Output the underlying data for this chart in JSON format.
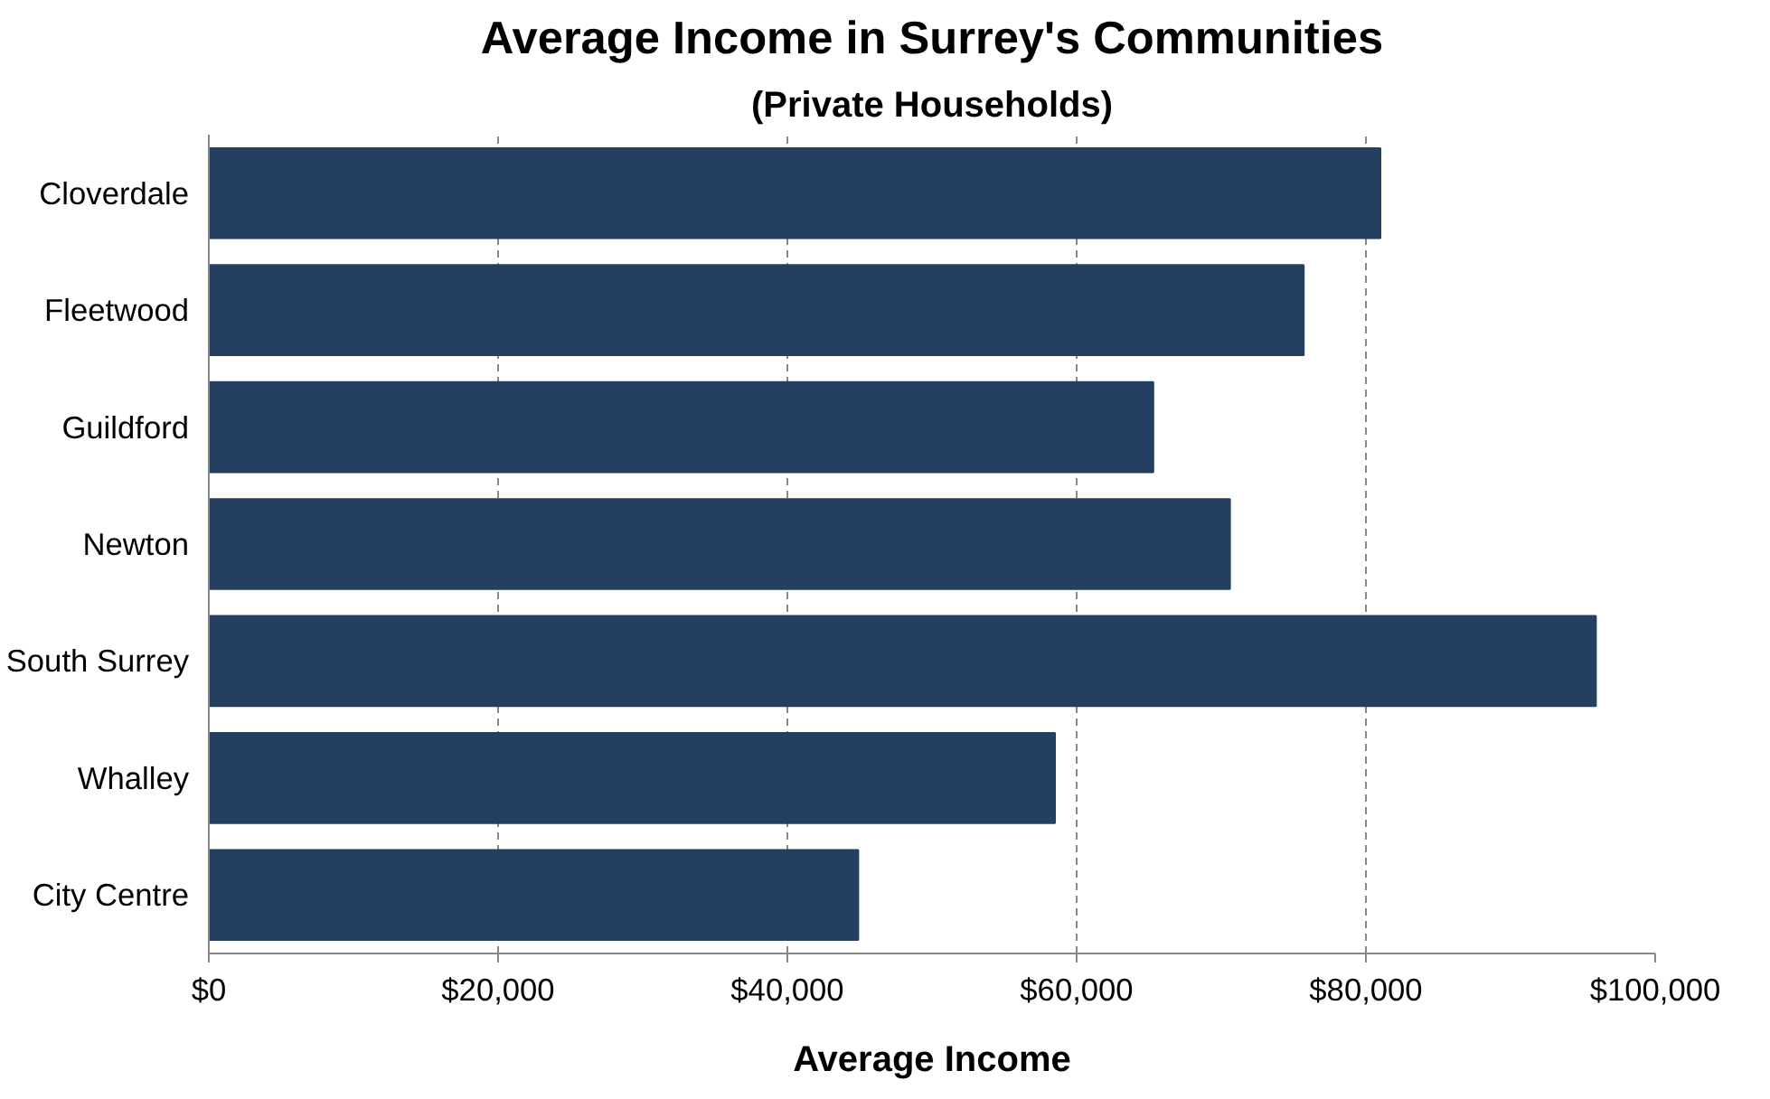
{
  "chart_data": {
    "type": "bar",
    "orientation": "horizontal",
    "title": "Average Income in Surrey's Communities",
    "subtitle": "(Private Households)",
    "xlabel": "Average Income",
    "categories": [
      "Cloverdale",
      "Fleetwood",
      "Guildford",
      "Newton",
      "South Surrey",
      "Whalley",
      "City Centre"
    ],
    "values": [
      81000,
      75700,
      65300,
      70600,
      95900,
      58500,
      44900
    ],
    "color": "#243f60",
    "xlim": [
      0,
      100000
    ],
    "xticks": [
      {
        "value": 0,
        "label": "$0"
      },
      {
        "value": 20000,
        "label": "$20,000"
      },
      {
        "value": 40000,
        "label": "$40,000"
      },
      {
        "value": 60000,
        "label": "$60,000"
      },
      {
        "value": 80000,
        "label": "$80,000"
      },
      {
        "value": 100000,
        "label": "$100,000"
      }
    ],
    "grid": "x"
  }
}
